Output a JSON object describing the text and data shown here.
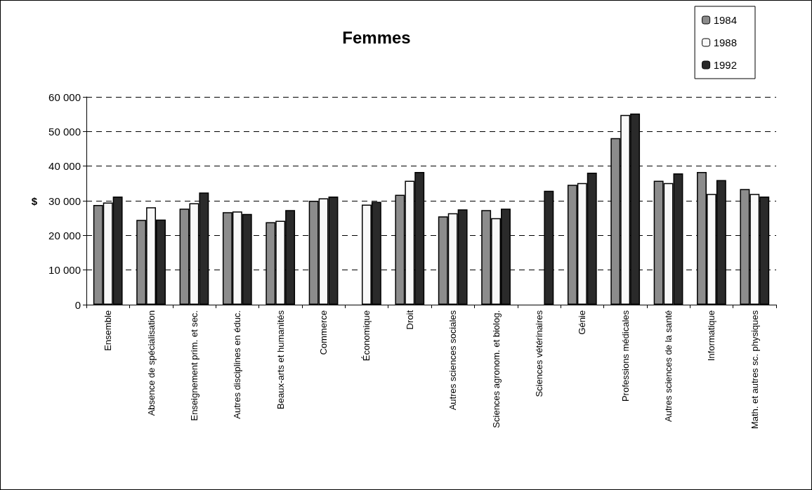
{
  "chart_data": {
    "type": "bar",
    "title": "Femmes",
    "ylabel": "$",
    "categories": [
      "Ensemble",
      "Absence de spécialisation",
      "Enseignement prim. et sec.",
      "Autres disciplines en éduc.",
      "Beaux-arts et humanités",
      "Commerce",
      "Économique",
      "Droit",
      "Autres sciences sociales",
      "Sciences agronom. et biolog.",
      "Sciences vétérinaires",
      "Génie",
      "Professions médicales",
      "Autres sciences de la santé",
      "Informatique",
      "Math. et autres sc. physiques"
    ],
    "series": [
      {
        "name": "1984",
        "color": "#8c8c8c",
        "values": [
          28800,
          24500,
          27700,
          26700,
          23800,
          30000,
          null,
          31700,
          25500,
          27300,
          null,
          34600,
          48100,
          35800,
          38300,
          33400
        ]
      },
      {
        "name": "1988",
        "color": "#f8f8f8",
        "values": [
          29500,
          28100,
          29300,
          26900,
          24200,
          30700,
          28900,
          35800,
          26400,
          25000,
          null,
          35100,
          54800,
          35100,
          32000,
          32000
        ]
      },
      {
        "name": "1992",
        "color": "#2a2a2a",
        "values": [
          31200,
          24600,
          32400,
          26200,
          27300,
          31200,
          29700,
          38300,
          27500,
          27700,
          32900,
          38100,
          55200,
          37900,
          36000,
          31200
        ]
      }
    ],
    "ylim": [
      0,
      60000
    ],
    "yticks": [
      {
        "value": 0,
        "label": "0"
      },
      {
        "value": 10000,
        "label": "10 000"
      },
      {
        "value": 20000,
        "label": "20 000"
      },
      {
        "value": 30000,
        "label": "30 000"
      },
      {
        "value": 40000,
        "label": "40 000"
      },
      {
        "value": 50000,
        "label": "50 000"
      },
      {
        "value": 60000,
        "label": "60 000"
      }
    ],
    "grid": "y",
    "legend": "top right"
  }
}
